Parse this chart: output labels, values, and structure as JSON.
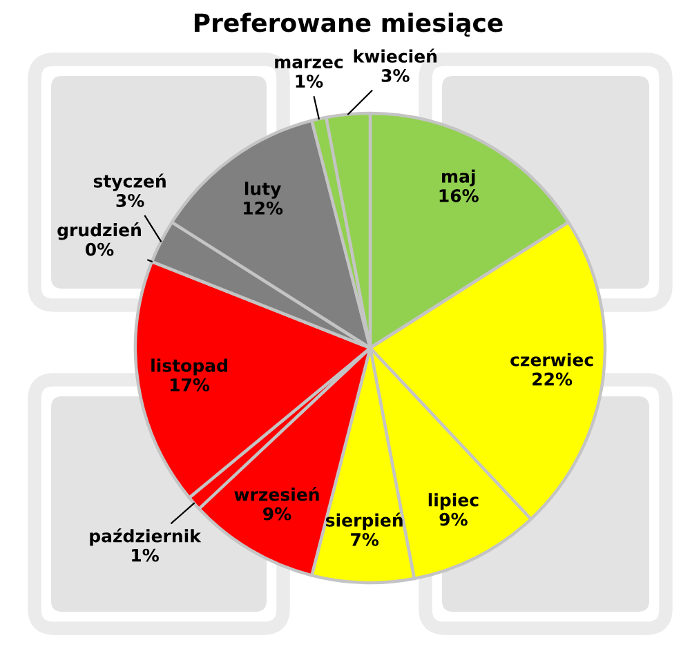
{
  "chart_data": {
    "type": "pie",
    "title": "Preferowane miesiące",
    "categories": [
      "maj",
      "czerwiec",
      "lipiec",
      "sierpień",
      "wrzesień",
      "październik",
      "listopad",
      "grudzień",
      "styczeń",
      "luty",
      "marzec",
      "kwiecień"
    ],
    "values": [
      16,
      22,
      9,
      7,
      9,
      1,
      17,
      0,
      3,
      12,
      1,
      3
    ],
    "value_labels": [
      "16%",
      "22%",
      "9%",
      "7%",
      "9%",
      "1%",
      "17%",
      "0%",
      "3%",
      "12%",
      "1%",
      "3%"
    ],
    "colors": [
      "#92d050",
      "#ffff00",
      "#ffff00",
      "#ffff00",
      "#ff0000",
      "#ff0000",
      "#ff0000",
      "#808080",
      "#808080",
      "#808080",
      "#92d050",
      "#92d050"
    ]
  }
}
